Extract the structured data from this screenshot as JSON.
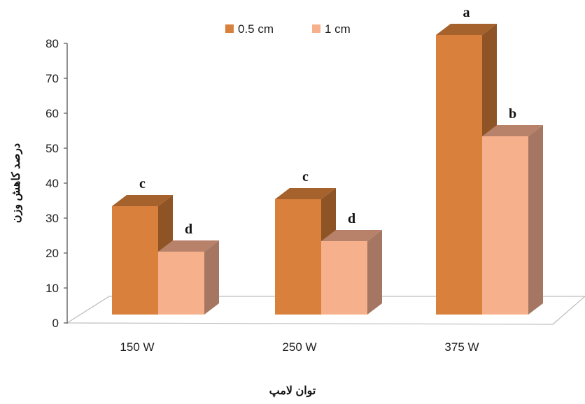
{
  "chart_data": {
    "type": "bar",
    "style": "3d-clustered",
    "categories": [
      "150 W",
      "250 W",
      "375 W"
    ],
    "series": [
      {
        "name": "0.5 cm",
        "values": [
          31,
          33,
          80
        ],
        "labels": [
          "c",
          "c",
          "a"
        ],
        "color": "#D9803D",
        "side_color": "#8F5426",
        "top_color": "#A5622C"
      },
      {
        "name": "1 cm",
        "values": [
          18,
          21,
          51
        ],
        "labels": [
          "d",
          "d",
          "b"
        ],
        "color": "#F7B08C",
        "side_color": "#A57762",
        "top_color": "#B8826A"
      }
    ],
    "ylim": [
      0,
      80
    ],
    "yticks": [
      "0",
      "10",
      "20",
      "30",
      "40",
      "50",
      "60",
      "70",
      "80"
    ],
    "xlabel": "توان لامپ",
    "ylabel": "درصد کاهش وزن",
    "legend": "top-center",
    "grid": false
  }
}
